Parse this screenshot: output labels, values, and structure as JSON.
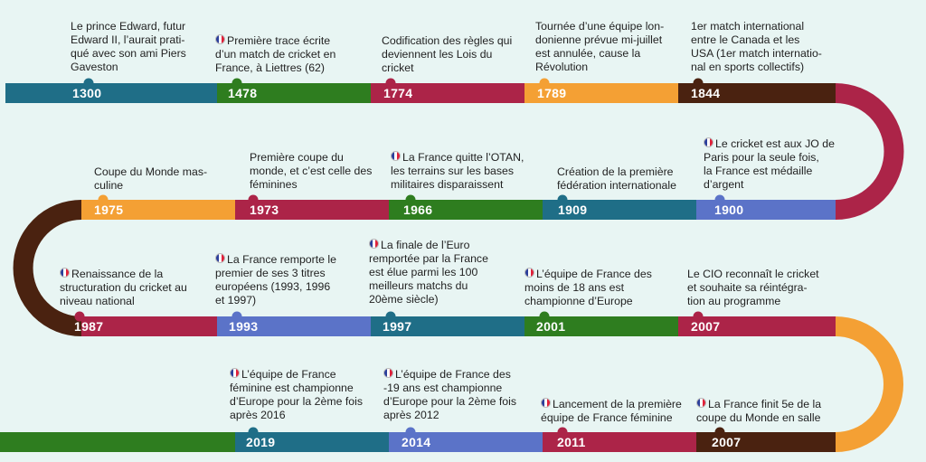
{
  "colors": {
    "teal": "#1f6e87",
    "green": "#2e7d1f",
    "crimson": "#ac2448",
    "orange": "#f4a034",
    "brown": "#4a2210",
    "blue": "#5b73c8",
    "background": "#e8f5f3"
  },
  "events": [
    {
      "year": "1300",
      "lines": [
        "Le prince Edward, futur",
        "Edward II, l’aurait prati-",
        "qué avec son ami Piers",
        "Gaveston"
      ],
      "flag": false,
      "color": "teal"
    },
    {
      "year": "1478",
      "lines": [
        "Première trace écrite",
        "d’un match de cricket en",
        "France, à Liettres (62)"
      ],
      "flag": true,
      "color": "green"
    },
    {
      "year": "1774",
      "lines": [
        "Codification des règles qui",
        "deviennent les Lois du",
        "cricket"
      ],
      "flag": false,
      "color": "crimson"
    },
    {
      "year": "1789",
      "lines": [
        "Tournée d’une équipe lon-",
        "donienne prévue mi-juillet",
        "est annulée, cause la",
        "Révolution"
      ],
      "flag": false,
      "color": "orange"
    },
    {
      "year": "1844",
      "lines": [
        "1er match international",
        "entre le Canada et les",
        "USA (1er match internatio-",
        "nal en sports collectifs)"
      ],
      "flag": false,
      "color": "brown"
    },
    {
      "year": "1900",
      "lines": [
        "Le cricket est aux JO de",
        "Paris pour la seule fois,",
        "la France est médaille",
        "d’argent"
      ],
      "flag": true,
      "color": "blue"
    },
    {
      "year": "1909",
      "lines": [
        "Création de la première",
        "fédération internationale"
      ],
      "flag": false,
      "color": "teal"
    },
    {
      "year": "1966",
      "lines": [
        "La France quitte l’OTAN,",
        "les terrains sur les bases",
        "militaires disparaissent"
      ],
      "flag": true,
      "color": "green"
    },
    {
      "year": "1973",
      "lines": [
        "Première coupe du",
        "monde, et c’est celle des",
        "féminines"
      ],
      "flag": false,
      "color": "crimson"
    },
    {
      "year": "1975",
      "lines": [
        "Coupe du Monde mas-",
        "culine"
      ],
      "flag": false,
      "color": "orange"
    },
    {
      "year": "1987",
      "lines": [
        "Renaissance de la",
        "structuration du cricket au",
        "niveau national"
      ],
      "flag": true,
      "color": "crimson"
    },
    {
      "year": "1993",
      "lines": [
        "La France remporte le",
        "premier de ses 3 titres",
        "européens (1993, 1996",
        "et 1997)"
      ],
      "flag": true,
      "color": "blue"
    },
    {
      "year": "1997",
      "lines": [
        "La finale de l’Euro",
        "remportée par la France",
        "est élue parmi les 100",
        "meilleurs matchs du",
        "20ème siècle)"
      ],
      "flag": true,
      "color": "teal"
    },
    {
      "year": "2001",
      "lines": [
        "L’équipe de France des",
        "moins de 18 ans est",
        "championne d’Europe"
      ],
      "flag": true,
      "color": "green"
    },
    {
      "year": "2007",
      "lines": [
        "Le CIO reconnaît le cricket",
        "et souhaite sa réintégra-",
        "tion au programme"
      ],
      "flag": false,
      "color": "crimson"
    },
    {
      "year": "2019",
      "lines": [
        "L’équipe de France",
        "féminine est championne",
        "d’Europe pour la 2ème fois",
        "après 2016"
      ],
      "flag": true,
      "color": "teal"
    },
    {
      "year": "2014",
      "lines": [
        "L’équipe de France des",
        "-19 ans est championne",
        "d’Europe pour la 2ème fois",
        "après 2012"
      ],
      "flag": true,
      "color": "blue"
    },
    {
      "year": "2011",
      "lines": [
        "Lancement de la première",
        "équipe de France féminine"
      ],
      "flag": true,
      "color": "crimson"
    },
    {
      "year": "2007",
      "lines": [
        "La France finit 5e de la",
        "coupe du Monde en salle"
      ],
      "flag": true,
      "color": "brown"
    }
  ]
}
